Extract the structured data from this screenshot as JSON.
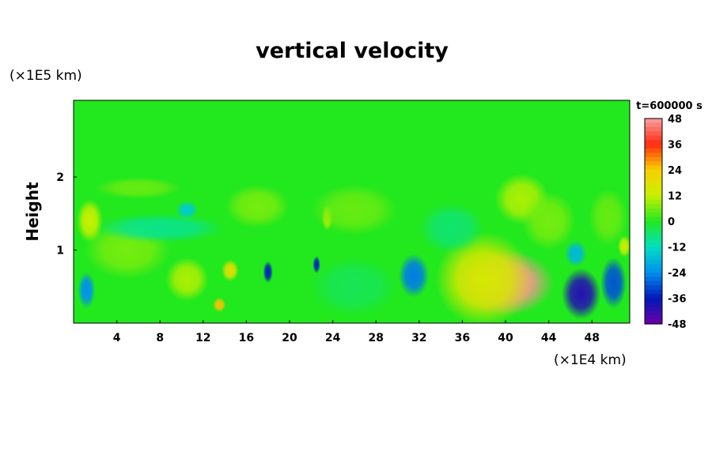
{
  "chart_data": {
    "type": "heatmap",
    "title": "vertical velocity",
    "ylabel": "Height",
    "y_unit": "(×1E5 km)",
    "x_unit": "(×1E4 km)",
    "time_label": "t=600000 s",
    "xlim": [
      0,
      51.5
    ],
    "ylim": [
      0,
      3.05
    ],
    "xticks": [
      "4",
      "8",
      "12",
      "16",
      "20",
      "24",
      "28",
      "32",
      "36",
      "40",
      "44",
      "48"
    ],
    "yticks": [
      "1",
      "2"
    ],
    "colorbar": {
      "range": [
        -48,
        48
      ],
      "ticks": [
        "48",
        "36",
        "24",
        "12",
        "0",
        "-12",
        "-24",
        "-36",
        "-48"
      ]
    },
    "colors": {
      "neg_max": "#6a00a8",
      "neg_strong": "#0018b8",
      "neg_mid": "#0090f0",
      "neg_low": "#00e0c0",
      "zero": "#22e81e",
      "pos_low": "#c8f000",
      "pos_mid": "#f8d000",
      "pos_strong": "#ff2a10",
      "pos_max": "#f8a0a0"
    },
    "features": [
      {
        "x": 40,
        "y": 0.55,
        "value": 47,
        "sx": 4.5,
        "sy": 0.45
      },
      {
        "x": 38,
        "y": 0.6,
        "value": 15,
        "sx": 4.5,
        "sy": 0.65
      },
      {
        "x": 41.5,
        "y": 1.7,
        "value": 10,
        "sx": 2.5,
        "sy": 0.35
      },
      {
        "x": 47,
        "y": 0.4,
        "value": -40,
        "sx": 1.8,
        "sy": 0.35
      },
      {
        "x": 50,
        "y": 0.55,
        "value": -30,
        "sx": 1.2,
        "sy": 0.35
      },
      {
        "x": 46.5,
        "y": 0.95,
        "value": -18,
        "sx": 1.0,
        "sy": 0.18
      },
      {
        "x": 31.5,
        "y": 0.65,
        "value": -26,
        "sx": 1.4,
        "sy": 0.3
      },
      {
        "x": 18,
        "y": 0.7,
        "value": -35,
        "sx": 0.45,
        "sy": 0.15
      },
      {
        "x": 22.5,
        "y": 0.8,
        "value": -35,
        "sx": 0.35,
        "sy": 0.12
      },
      {
        "x": 1.2,
        "y": 0.45,
        "value": -24,
        "sx": 0.8,
        "sy": 0.25
      },
      {
        "x": 10.5,
        "y": 0.6,
        "value": 10,
        "sx": 2.0,
        "sy": 0.3
      },
      {
        "x": 14.5,
        "y": 0.72,
        "value": 18,
        "sx": 0.8,
        "sy": 0.15
      },
      {
        "x": 13.5,
        "y": 0.25,
        "value": 25,
        "sx": 0.6,
        "sy": 0.1
      },
      {
        "x": 5,
        "y": 1.0,
        "value": 6,
        "sx": 4.0,
        "sy": 0.4
      },
      {
        "x": 8,
        "y": 1.3,
        "value": -8,
        "sx": 6.0,
        "sy": 0.2
      },
      {
        "x": 1.5,
        "y": 1.4,
        "value": 12,
        "sx": 1.2,
        "sy": 0.3
      },
      {
        "x": 10.5,
        "y": 1.55,
        "value": -15,
        "sx": 1.0,
        "sy": 0.12
      },
      {
        "x": 17,
        "y": 1.6,
        "value": 6,
        "sx": 3.0,
        "sy": 0.3
      },
      {
        "x": 23.5,
        "y": 1.45,
        "value": 14,
        "sx": 0.5,
        "sy": 0.18
      },
      {
        "x": 26,
        "y": 1.55,
        "value": 5,
        "sx": 4.0,
        "sy": 0.35
      },
      {
        "x": 35,
        "y": 1.3,
        "value": -6,
        "sx": 3.0,
        "sy": 0.35
      },
      {
        "x": 26,
        "y": 0.5,
        "value": -4,
        "sx": 4.0,
        "sy": 0.4
      },
      {
        "x": 44,
        "y": 1.4,
        "value": 6,
        "sx": 2.5,
        "sy": 0.4
      },
      {
        "x": 49.5,
        "y": 1.45,
        "value": 5,
        "sx": 1.8,
        "sy": 0.4
      },
      {
        "x": 51,
        "y": 1.05,
        "value": 12,
        "sx": 0.6,
        "sy": 0.15
      },
      {
        "x": 6,
        "y": 1.85,
        "value": 5,
        "sx": 4.0,
        "sy": 0.15
      }
    ]
  }
}
